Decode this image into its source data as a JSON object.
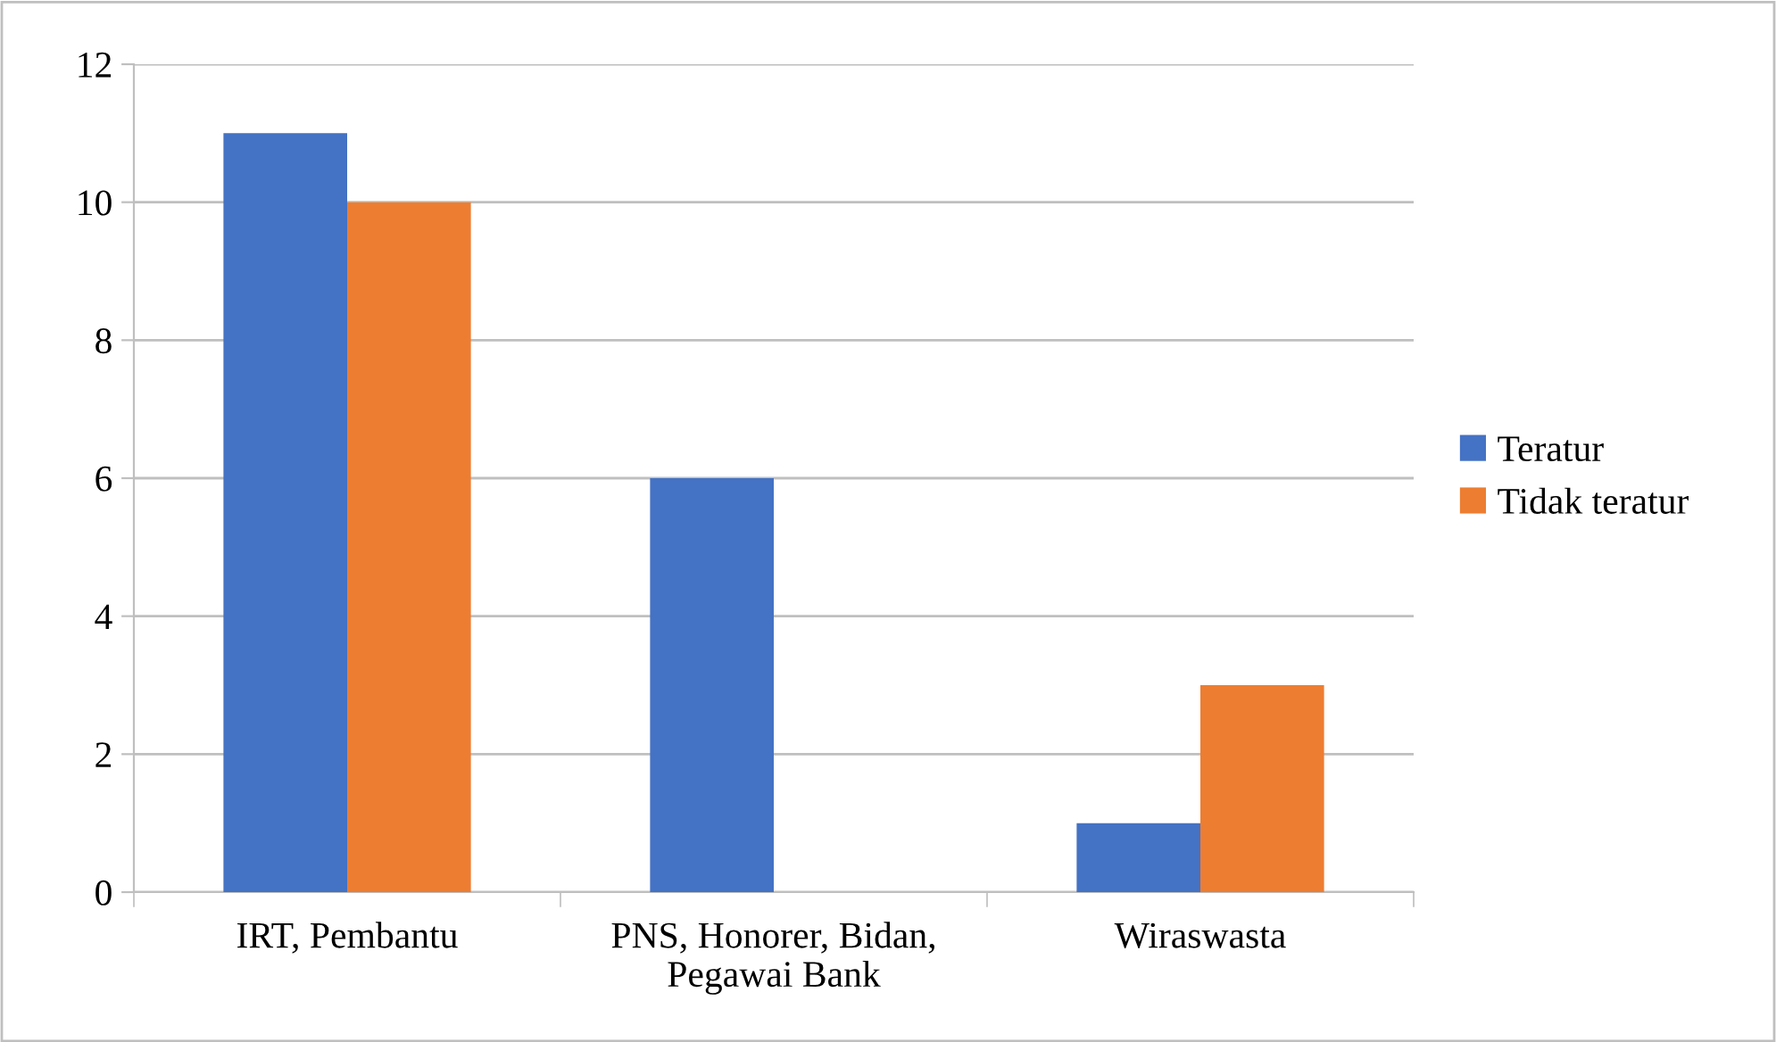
{
  "chart_data": {
    "type": "bar",
    "categories": [
      "IRT, Pembantu",
      "PNS, Honorer, Bidan,\nPegawai Bank",
      "Wiraswasta"
    ],
    "series": [
      {
        "name": "Teratur",
        "color": "#4472c4",
        "values": [
          11,
          6,
          1
        ]
      },
      {
        "name": "Tidak teratur",
        "color": "#ed7d31",
        "values": [
          10,
          0,
          3
        ]
      }
    ],
    "ylim": [
      0,
      12
    ],
    "yticks": [
      0,
      2,
      4,
      6,
      8,
      10,
      12
    ],
    "grid": "y",
    "legend": "right"
  }
}
